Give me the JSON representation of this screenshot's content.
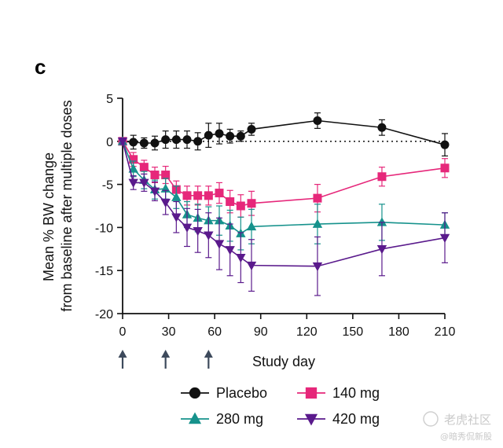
{
  "panel_label": "c",
  "chart_data": {
    "type": "line",
    "xlabel": "Study day",
    "ylabel_lines": [
      "Mean % BW change",
      "from baseline after multiple doses"
    ],
    "xlim": [
      0,
      210
    ],
    "ylim": [
      -20,
      5
    ],
    "xticks": [
      0,
      30,
      60,
      90,
      120,
      150,
      180,
      210
    ],
    "yticks": [
      5,
      0,
      -5,
      -10,
      -15,
      -20
    ],
    "reference_line_y": 0,
    "dose_arrows_x": [
      0,
      28,
      56
    ],
    "legend": {
      "position": "bottom",
      "columns": 2
    },
    "series": [
      {
        "name": "Placebo",
        "color": "#111111",
        "marker": "circle",
        "points": [
          {
            "x": 0,
            "y": 0.0,
            "err": 0.3
          },
          {
            "x": 7,
            "y": -0.1,
            "err": 0.8
          },
          {
            "x": 14,
            "y": -0.2,
            "err": 0.6
          },
          {
            "x": 21,
            "y": -0.2,
            "err": 0.8
          },
          {
            "x": 28,
            "y": 0.2,
            "err": 1.0
          },
          {
            "x": 35,
            "y": 0.2,
            "err": 1.0
          },
          {
            "x": 42,
            "y": 0.2,
            "err": 1.0
          },
          {
            "x": 49,
            "y": 0.0,
            "err": 1.0
          },
          {
            "x": 56,
            "y": 0.7,
            "err": 1.4
          },
          {
            "x": 63,
            "y": 0.9,
            "err": 1.2
          },
          {
            "x": 70,
            "y": 0.6,
            "err": 0.8
          },
          {
            "x": 77,
            "y": 0.6,
            "err": 0.6
          },
          {
            "x": 84,
            "y": 1.4,
            "err": 0.7
          },
          {
            "x": 127,
            "y": 2.4,
            "err": 0.9
          },
          {
            "x": 169,
            "y": 1.6,
            "err": 0.9
          },
          {
            "x": 210,
            "y": -0.4,
            "err": 1.3
          }
        ]
      },
      {
        "name": "140 mg",
        "color": "#e6277a",
        "marker": "square",
        "points": [
          {
            "x": 0,
            "y": 0.0,
            "err": 0.3
          },
          {
            "x": 7,
            "y": -2.1,
            "err": 0.8
          },
          {
            "x": 14,
            "y": -3.0,
            "err": 0.8
          },
          {
            "x": 21,
            "y": -3.9,
            "err": 0.9
          },
          {
            "x": 28,
            "y": -3.9,
            "err": 1.0
          },
          {
            "x": 35,
            "y": -5.6,
            "err": 1.0
          },
          {
            "x": 42,
            "y": -6.3,
            "err": 1.1
          },
          {
            "x": 49,
            "y": -6.3,
            "err": 1.1
          },
          {
            "x": 56,
            "y": -6.3,
            "err": 1.1
          },
          {
            "x": 63,
            "y": -6.0,
            "err": 1.2
          },
          {
            "x": 70,
            "y": -7.0,
            "err": 1.3
          },
          {
            "x": 77,
            "y": -7.5,
            "err": 1.3
          },
          {
            "x": 84,
            "y": -7.2,
            "err": 1.4
          },
          {
            "x": 127,
            "y": -6.6,
            "err": 1.6
          },
          {
            "x": 169,
            "y": -4.1,
            "err": 1.1
          },
          {
            "x": 210,
            "y": -3.1,
            "err": 1.1
          }
        ]
      },
      {
        "name": "280 mg",
        "color": "#16928c",
        "marker": "triangle-up",
        "points": [
          {
            "x": 0,
            "y": 0.0,
            "err": 0.3
          },
          {
            "x": 7,
            "y": -3.2,
            "err": 0.9
          },
          {
            "x": 14,
            "y": -4.5,
            "err": 1.0
          },
          {
            "x": 21,
            "y": -5.6,
            "err": 1.1
          },
          {
            "x": 28,
            "y": -5.5,
            "err": 1.2
          },
          {
            "x": 35,
            "y": -6.5,
            "err": 1.3
          },
          {
            "x": 42,
            "y": -8.5,
            "err": 1.5
          },
          {
            "x": 49,
            "y": -8.9,
            "err": 1.6
          },
          {
            "x": 56,
            "y": -9.2,
            "err": 1.6
          },
          {
            "x": 63,
            "y": -9.2,
            "err": 1.7
          },
          {
            "x": 70,
            "y": -9.8,
            "err": 1.8
          },
          {
            "x": 77,
            "y": -10.7,
            "err": 1.9
          },
          {
            "x": 84,
            "y": -9.9,
            "err": 2.0
          },
          {
            "x": 127,
            "y": -9.6,
            "err": 2.3
          },
          {
            "x": 169,
            "y": -9.4,
            "err": 2.1
          },
          {
            "x": 210,
            "y": -9.7,
            "err": 1.4
          }
        ]
      },
      {
        "name": "420 mg",
        "color": "#5a1a8c",
        "marker": "triangle-down",
        "points": [
          {
            "x": 0,
            "y": 0.0,
            "err": 0.3
          },
          {
            "x": 7,
            "y": -4.8,
            "err": 0.8
          },
          {
            "x": 14,
            "y": -4.8,
            "err": 1.0
          },
          {
            "x": 21,
            "y": -5.8,
            "err": 1.1
          },
          {
            "x": 28,
            "y": -7.1,
            "err": 1.4
          },
          {
            "x": 35,
            "y": -8.8,
            "err": 1.8
          },
          {
            "x": 42,
            "y": -10.0,
            "err": 2.2
          },
          {
            "x": 49,
            "y": -10.4,
            "err": 2.5
          },
          {
            "x": 56,
            "y": -10.9,
            "err": 2.6
          },
          {
            "x": 63,
            "y": -11.9,
            "err": 3.0
          },
          {
            "x": 70,
            "y": -12.6,
            "err": 3.0
          },
          {
            "x": 77,
            "y": -13.5,
            "err": 2.9
          },
          {
            "x": 84,
            "y": -14.4,
            "err": 3.0
          },
          {
            "x": 127,
            "y": -14.5,
            "err": 3.4
          },
          {
            "x": 169,
            "y": -12.5,
            "err": 3.1
          },
          {
            "x": 210,
            "y": -11.2,
            "err": 2.9
          }
        ]
      }
    ]
  },
  "watermark": {
    "main": "老虎社区",
    "sub": "@暗秀侃新股"
  }
}
